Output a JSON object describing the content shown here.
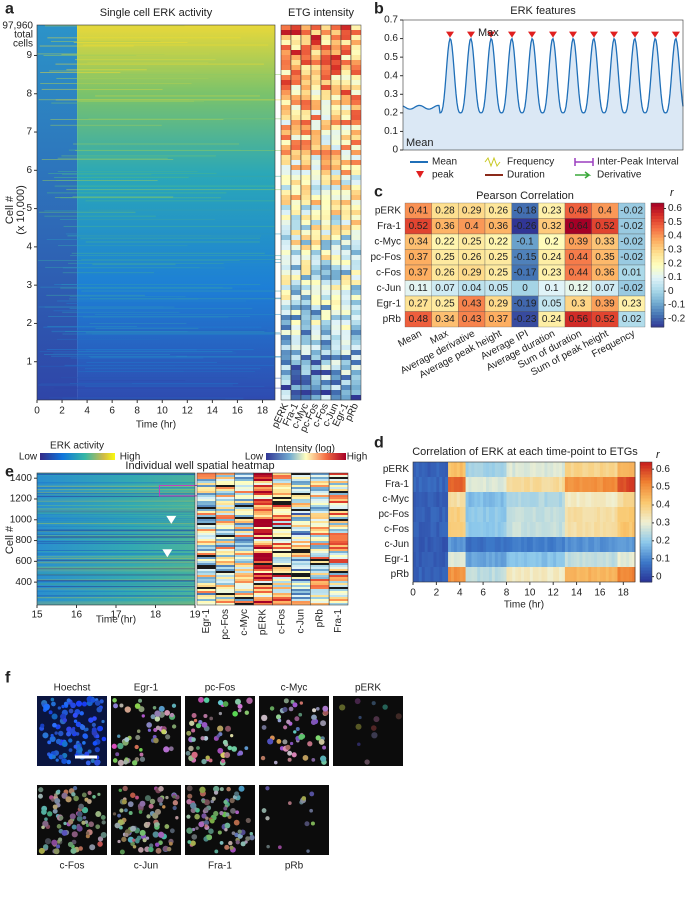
{
  "panel_a": {
    "letter": "a",
    "title": "Single cell ERK activity",
    "total_cells": [
      "97,960",
      "total",
      "cells"
    ],
    "y_label": [
      "Cell #",
      "(x 10,000)"
    ],
    "ylim": [
      0,
      9.796
    ],
    "yticks": [
      1,
      2,
      3,
      4,
      5,
      6,
      7,
      8,
      9
    ],
    "xlim": [
      0,
      19
    ],
    "xticks": [
      0,
      2,
      4,
      6,
      8,
      10,
      12,
      14,
      16,
      18
    ],
    "x_label": "Time (hr)",
    "etg_title": "ETG intensity",
    "etg_columns": [
      "pERK",
      "Fra-1",
      "c-Myc",
      "pc-Fos",
      "c-Fos",
      "c-Jun",
      "Egr-1",
      "pRb"
    ]
  },
  "panel_b": {
    "letter": "b",
    "title": "ERK features",
    "ylim": [
      0,
      0.7
    ],
    "yticks": [
      0,
      0.1,
      0.2,
      0.3,
      0.4,
      0.5,
      0.6,
      0.7
    ],
    "max_label": "Max",
    "mean_label": "Mean",
    "legend": [
      "Mean",
      "peak",
      "Frequency",
      "Duration",
      "Inter-Peak Interval",
      "Derivative"
    ]
  },
  "panel_c": {
    "letter": "c",
    "title": "Pearson Correlation",
    "color_label": "r",
    "rows": [
      "pERK",
      "Fra-1",
      "c-Myc",
      "pc-Fos",
      "c-Fos",
      "c-Jun",
      "Egr-1",
      "pRb"
    ],
    "columns": [
      "Mean",
      "Max",
      "Average derivative",
      "Average peak height",
      "Average IPI",
      "Average duration",
      "Sum of duration",
      "Sum of peak height",
      "Frequency"
    ],
    "values": [
      [
        0.41,
        0.28,
        0.29,
        0.26,
        -0.18,
        0.23,
        0.48,
        0.4,
        -0.02
      ],
      [
        0.52,
        0.36,
        0.4,
        0.36,
        -0.26,
        0.32,
        0.64,
        0.52,
        -0.02
      ],
      [
        0.34,
        0.22,
        0.25,
        0.22,
        -0.1,
        0.2,
        0.39,
        0.33,
        -0.02
      ],
      [
        0.37,
        0.25,
        0.26,
        0.25,
        -0.15,
        0.24,
        0.44,
        0.35,
        -0.02
      ],
      [
        0.37,
        0.26,
        0.29,
        0.25,
        -0.17,
        0.23,
        0.44,
        0.36,
        0.01
      ],
      [
        0.11,
        0.07,
        0.04,
        0.05,
        0,
        0.1,
        0.12,
        0.07,
        -0.02
      ],
      [
        0.27,
        0.25,
        0.43,
        0.29,
        -0.19,
        0.05,
        0.3,
        0.39,
        0.23
      ],
      [
        0.48,
        0.34,
        0.43,
        0.37,
        -0.23,
        0.24,
        0.56,
        0.52,
        0.02
      ]
    ],
    "clim": [
      -0.26,
      0.64
    ],
    "cticks": [
      -0.2,
      -0.1,
      0,
      0.1,
      0.2,
      0.3,
      0.4,
      0.5,
      0.6
    ]
  },
  "panel_d": {
    "letter": "d",
    "title": "Correlation of ERK at each time-point to ETGs",
    "rows": [
      "pERK",
      "Fra-1",
      "c-Myc",
      "pc-Fos",
      "c-Fos",
      "c-Jun",
      "Egr-1",
      "pRb"
    ],
    "xlim": [
      0,
      19
    ],
    "xticks": [
      0,
      2,
      4,
      6,
      8,
      10,
      12,
      14,
      16,
      18
    ],
    "x_label": "Time (hr)",
    "color_label": "r",
    "clim": [
      -0.03,
      0.64
    ],
    "cticks": [
      0,
      0.1,
      0.2,
      0.3,
      0.4,
      0.5,
      0.6
    ]
  },
  "panel_e": {
    "letter": "e",
    "erk_bar": {
      "title": "ERK activity",
      "low": "Low",
      "high": "High"
    },
    "intensity_bar": {
      "title": "Intensity (log)",
      "low": "Low",
      "high": "High"
    },
    "title": "Individual well spatial heatmap",
    "y_label": "Cell #",
    "ylim": [
      180,
      1450
    ],
    "yticks": [
      400,
      600,
      800,
      1000,
      1200,
      1400
    ],
    "xlim": [
      15,
      19
    ],
    "xticks": [
      15,
      16,
      17,
      18,
      19
    ],
    "x_label": "Time (hr)",
    "columns": [
      "Egr-1",
      "pc-Fos",
      "c-Myc",
      "pERK",
      "c-Fos",
      "c-Jun",
      "pRb",
      "Fra-1"
    ]
  },
  "panel_f": {
    "letter": "f",
    "top_labels": [
      "Hoechst",
      "Egr-1",
      "pc-Fos",
      "c-Myc",
      "pERK"
    ],
    "bottom_labels": [
      "c-Fos",
      "c-Jun",
      "Fra-1",
      "pRb"
    ]
  }
}
